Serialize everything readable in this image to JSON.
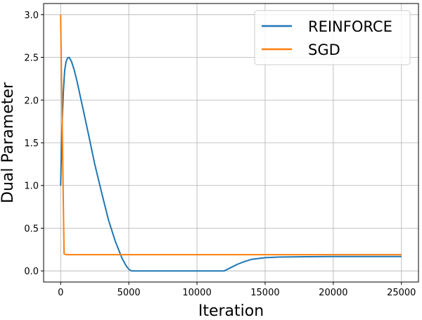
{
  "chart_data": {
    "type": "line",
    "title": "",
    "xlabel": "Iteration",
    "ylabel": "Dual Parameter",
    "xlim": [
      -1250,
      26250
    ],
    "ylim": [
      -0.13,
      3.13
    ],
    "xticks": [
      0,
      5000,
      10000,
      15000,
      20000,
      25000
    ],
    "xtick_labels": [
      "0",
      "5000",
      "10000",
      "15000",
      "20000",
      "25000"
    ],
    "yticks": [
      0.0,
      0.5,
      1.0,
      1.5,
      2.0,
      2.5,
      3.0
    ],
    "ytick_labels": [
      "0.0",
      "0.5",
      "1.0",
      "1.5",
      "2.0",
      "2.5",
      "3.0"
    ],
    "grid": true,
    "legend_position": "top-right",
    "series": [
      {
        "name": "REINFORCE",
        "color": "#1f77b4",
        "x": [
          0,
          100,
          200,
          300,
          400,
          500,
          600,
          700,
          800,
          1000,
          1200,
          1500,
          1800,
          2000,
          2500,
          3000,
          3500,
          4000,
          4500,
          4800,
          5000,
          5200,
          6000,
          8000,
          10000,
          12000,
          12500,
          13000,
          13500,
          14000,
          15000,
          16000,
          18000,
          20000,
          22000,
          25000
        ],
        "y": [
          1.0,
          1.7,
          2.1,
          2.35,
          2.45,
          2.49,
          2.5,
          2.48,
          2.45,
          2.35,
          2.22,
          2.0,
          1.78,
          1.63,
          1.25,
          0.92,
          0.6,
          0.35,
          0.15,
          0.06,
          0.02,
          0.0,
          0.0,
          0.0,
          0.0,
          0.0,
          0.04,
          0.08,
          0.11,
          0.135,
          0.155,
          0.162,
          0.166,
          0.168,
          0.168,
          0.168
        ]
      },
      {
        "name": "SGD",
        "color": "#ff7f0e",
        "x": [
          0,
          250,
          400,
          1000,
          5000,
          10000,
          15000,
          20000,
          25000
        ],
        "y": [
          3.0,
          0.2,
          0.19,
          0.19,
          0.19,
          0.19,
          0.19,
          0.19,
          0.19
        ]
      }
    ]
  }
}
